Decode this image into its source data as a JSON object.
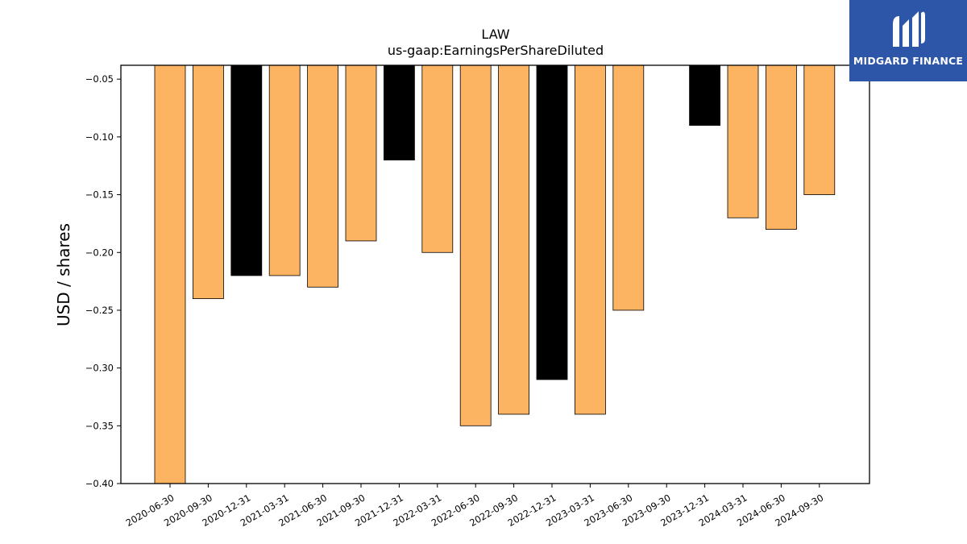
{
  "brand": {
    "name": "MIDGARD FINANCE",
    "bg_color": "#2d55a8"
  },
  "chart_data": {
    "type": "bar",
    "title": "LAW",
    "subtitle": "us-gaap:EarningsPerShareDiluted",
    "xlabel": "",
    "ylabel": "USD / shares",
    "ylim": [
      -0.4,
      -0.038
    ],
    "yticks": [
      -0.05,
      -0.1,
      -0.15,
      -0.2,
      -0.25,
      -0.3,
      -0.35,
      -0.4
    ],
    "grid": false,
    "legend": "none",
    "categories": [
      "2020-06-30",
      "2020-09-30",
      "2020-12-31",
      "2021-03-31",
      "2021-06-30",
      "2021-09-30",
      "2021-12-31",
      "2022-03-31",
      "2022-06-30",
      "2022-09-30",
      "2022-12-31",
      "2023-03-31",
      "2023-06-30",
      "2023-09-30",
      "2023-12-31",
      "2024-03-31",
      "2024-06-30",
      "2024-09-30"
    ],
    "values": [
      -0.4,
      -0.24,
      -0.22,
      -0.22,
      -0.23,
      -0.19,
      -0.12,
      -0.2,
      -0.35,
      -0.34,
      -0.31,
      -0.34,
      -0.25,
      null,
      -0.09,
      -0.17,
      -0.18,
      -0.15
    ],
    "bar_colors": [
      "#fdb462",
      "#fdb462",
      "#000000",
      "#fdb462",
      "#fdb462",
      "#fdb462",
      "#000000",
      "#fdb462",
      "#fdb462",
      "#fdb462",
      "#000000",
      "#fdb462",
      "#fdb462",
      "#fdb462",
      "#000000",
      "#fdb462",
      "#fdb462",
      "#fdb462"
    ]
  }
}
